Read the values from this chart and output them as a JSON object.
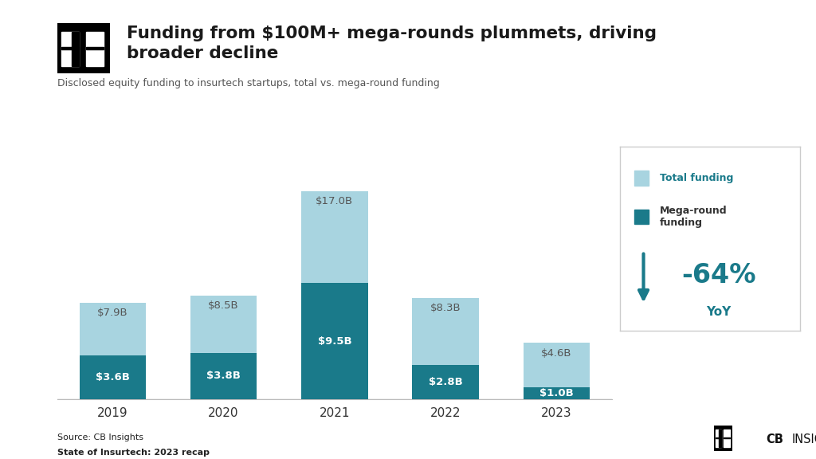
{
  "years": [
    "2019",
    "2020",
    "2021",
    "2022",
    "2023"
  ],
  "total_funding": [
    7.9,
    8.5,
    17.0,
    8.3,
    4.6
  ],
  "mega_funding": [
    3.6,
    3.8,
    9.5,
    2.8,
    1.0
  ],
  "total_color": "#a8d4e0",
  "mega_color": "#1a7a8a",
  "total_label_color": "#555555",
  "title": "Funding from $100M+ mega-rounds plummets, driving\nbroader decline",
  "subtitle": "Disclosed equity funding to insurtech startups, total vs. mega-round funding",
  "legend_label_total": "Total funding",
  "legend_label_mega": "Mega-round\nfunding",
  "yoy_text": "-64%",
  "yoy_label": "YoY",
  "footer_line1": "State of Insurtech: 2023 recap",
  "footer_line2": "Source: CB Insights",
  "background_color": "#ffffff",
  "bar_width": 0.6,
  "ylim": [
    0,
    19.5
  ]
}
